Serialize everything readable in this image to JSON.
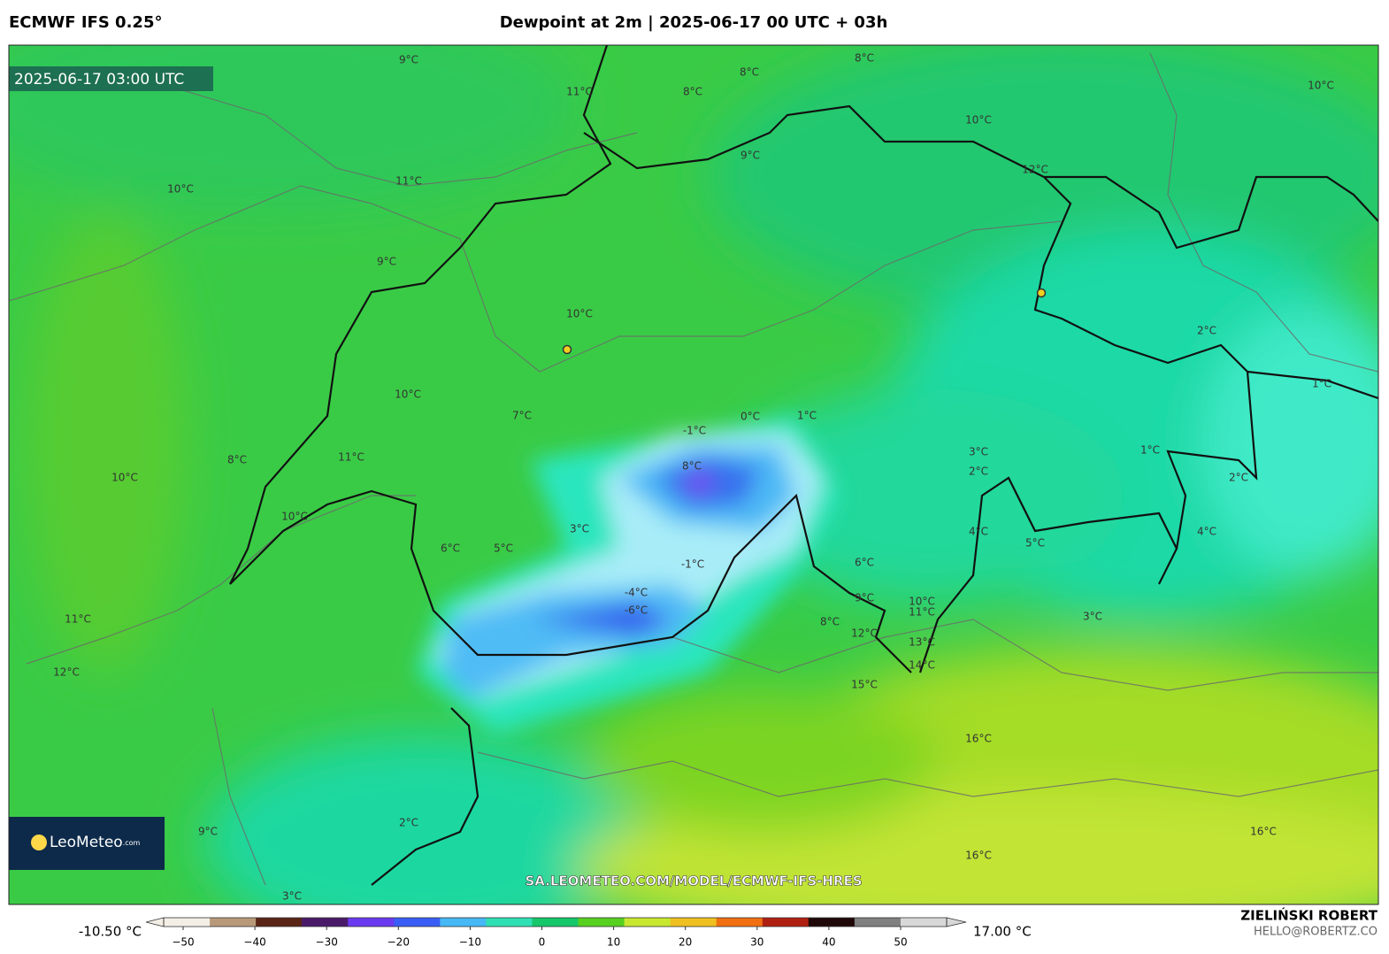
{
  "header": {
    "model": "ECMWF IFS 0.25°",
    "title": "Dewpoint at 2m | 2025-06-17 00 UTC + 03h"
  },
  "map": {
    "timestamp": "2025-06-17 03:00 UTC",
    "url": "SA.LEOMETEO.COM/MODEL/ECMWF-IFS-HRES",
    "logo": {
      "brand": "LeoMeteo",
      "suffix": ".com"
    },
    "contour_labels": [
      "9°C",
      "11°C",
      "8°C",
      "8°C",
      "8°C",
      "10°C",
      "10°C",
      "9°C",
      "12°C",
      "10°C",
      "11°C",
      "9°C",
      "10°C",
      "2°C",
      "10°C",
      "7°C",
      "0°C",
      "1°C",
      "-1°C",
      "1°C",
      "8°C",
      "11°C",
      "10°C",
      "8°C",
      "3°C",
      "2°C",
      "1°C",
      "2°C",
      "10°C",
      "3°C",
      "4°C",
      "5°C",
      "4°C",
      "6°C",
      "5°C",
      "-1°C",
      "6°C",
      "-4°C",
      "-6°C",
      "11°C",
      "9°C",
      "10°C",
      "11°C",
      "3°C",
      "8°C",
      "12°C",
      "13°C",
      "12°C",
      "14°C",
      "15°C",
      "16°C",
      "2°C",
      "9°C",
      "16°C",
      "16°C",
      "3°C"
    ]
  },
  "colorbar": {
    "min_label": "-10.50 °C",
    "max_label": "17.00 °C",
    "ticks": [
      {
        "value": -50,
        "label": "−50"
      },
      {
        "value": -40,
        "label": "−40"
      },
      {
        "value": -30,
        "label": "−30"
      },
      {
        "value": -20,
        "label": "−20"
      },
      {
        "value": -10,
        "label": "−10"
      },
      0,
      10,
      20,
      30,
      40,
      50
    ],
    "colors": [
      "#f4efe6",
      "#b89a7a",
      "#5a2416",
      "#4a1a6a",
      "#6a3af0",
      "#3a5ef5",
      "#45b8f5",
      "#2ee0b4",
      "#16c86a",
      "#58d020",
      "#c8e830",
      "#f0c020",
      "#f07010",
      "#b02010",
      "#200808",
      "#808080",
      "#d8d8d8"
    ]
  },
  "author": {
    "name": "ZIELIŃSKI ROBERT",
    "email": "HELLO@ROBERTZ.CO"
  }
}
